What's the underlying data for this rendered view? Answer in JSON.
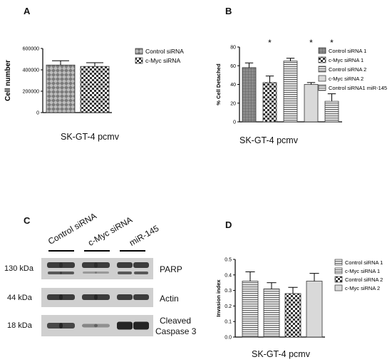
{
  "panels": {
    "A": {
      "letter": "A",
      "caption": "SK-GT-4  pcmv"
    },
    "B": {
      "letter": "B",
      "caption": "SK-GT-4  pcmv"
    },
    "C": {
      "letter": "C"
    },
    "D": {
      "letter": "D",
      "caption": "SK-GT-4  pcmv"
    }
  },
  "chart_data": [
    {
      "id": "A",
      "type": "bar",
      "ylabel": "Cell number",
      "yticks": [
        "0",
        "200000",
        "400000",
        "600000"
      ],
      "ylim": [
        0,
        600000
      ],
      "series": [
        {
          "name": "Control siRNA",
          "value": 445000,
          "error": 40000,
          "pattern": "diamond"
        },
        {
          "name": "c-Myc siRNA",
          "value": 432000,
          "error": 35000,
          "pattern": "check"
        }
      ],
      "legend": "right"
    },
    {
      "id": "B",
      "type": "bar",
      "ylabel": "% Cell Detached",
      "yticks": [
        "0",
        "20",
        "40",
        "60",
        "80"
      ],
      "ylim": [
        0,
        80
      ],
      "series": [
        {
          "name": "Control siRNA 1",
          "value": 58,
          "error": 5,
          "pattern": "grid",
          "star": ""
        },
        {
          "name": "c-Myc siRNA 1",
          "value": 42,
          "error": 7,
          "pattern": "check",
          "star": "*"
        },
        {
          "name": "Control siRNA 2",
          "value": 65,
          "error": 3,
          "pattern": "hlines",
          "star": ""
        },
        {
          "name": "c-Myc siRNA 2",
          "value": 40,
          "error": 2,
          "pattern": "light",
          "star": "*"
        },
        {
          "name": "Control siRNA1 miR-145",
          "value": 22,
          "error": 8,
          "pattern": "hlines",
          "star": "*"
        }
      ],
      "legend": "right"
    },
    {
      "id": "D",
      "type": "bar",
      "ylabel": "Invasion index",
      "yticks": [
        "0.0",
        "0.1",
        "0.2",
        "0.3",
        "0.4",
        "0.5"
      ],
      "ylim": [
        0,
        0.5
      ],
      "series": [
        {
          "name": "Control siRNA 1",
          "value": 0.36,
          "error": 0.06,
          "pattern": "hlines"
        },
        {
          "name": "c-Myc siRNA 1",
          "value": 0.31,
          "error": 0.04,
          "pattern": "hlines"
        },
        {
          "name": "Control siRNA 2",
          "value": 0.28,
          "error": 0.04,
          "pattern": "check"
        },
        {
          "name": "c-Myc siRNA 2",
          "value": 0.36,
          "error": 0.05,
          "pattern": "light"
        }
      ],
      "legend": "right"
    }
  ],
  "western_blot": {
    "lanes": [
      "Control siRNA",
      "c-Myc siRNA",
      "miR-145"
    ],
    "bands": [
      {
        "size": "130 kDa",
        "protein": "PARP"
      },
      {
        "size": "44 kDa",
        "protein": "Actin"
      },
      {
        "size": "18 kDa",
        "protein": "Cleaved",
        "protein2": "Caspase 3"
      }
    ]
  },
  "colors": {
    "bar_fill": "#9a9a9a",
    "bar_dark": "#5a5a5a",
    "axis": "#000000",
    "blot_bg": "#cfcfcf",
    "band": "#2a2a2a"
  }
}
